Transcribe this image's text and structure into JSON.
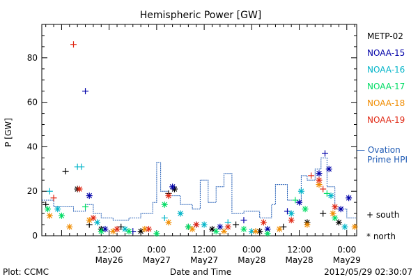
{
  "chart_data": {
    "type": "scatter",
    "title": "Hemispheric Power [GW]",
    "xlabel": "Date and Time",
    "ylabel": "P [GW]",
    "xlim": [
      "2012-05-25T19:00",
      "2012-05-29T02:30"
    ],
    "ylim": [
      0,
      95
    ],
    "yticks": [
      0,
      20,
      40,
      60,
      80
    ],
    "xticks": [
      {
        "time": "2012-05-26T12:00",
        "line1": "12:00",
        "line2": "May26"
      },
      {
        "time": "2012-05-27T00:00",
        "line1": "0:00",
        "line2": "May27"
      },
      {
        "time": "2012-05-27T12:00",
        "line1": "12:00",
        "line2": "May27"
      },
      {
        "time": "2012-05-28T00:00",
        "line1": "0:00",
        "line2": "May28"
      },
      {
        "time": "2012-05-28T12:00",
        "line1": "12:00",
        "line2": "May28"
      },
      {
        "time": "2012-05-29T00:00",
        "line1": "0:00",
        "line2": "May29"
      }
    ],
    "legend_placement": "right",
    "series": [
      {
        "name": "METP-02",
        "color": "#000000",
        "points": [
          [
            "2012-05-25T20:00",
            14,
            "south"
          ],
          [
            "2012-05-26T01:00",
            29,
            "south"
          ],
          [
            "2012-05-26T04:00",
            21,
            "north"
          ],
          [
            "2012-05-26T07:00",
            5,
            "south"
          ],
          [
            "2012-05-26T10:00",
            3,
            "north"
          ],
          [
            "2012-05-26T15:00",
            4,
            "south"
          ],
          [
            "2012-05-26T20:00",
            2,
            "north"
          ],
          [
            "2012-05-27T03:00",
            19,
            "south"
          ],
          [
            "2012-05-27T04:30",
            21,
            "north"
          ],
          [
            "2012-05-27T08:00",
            4,
            "south"
          ],
          [
            "2012-05-27T14:00",
            3,
            "north"
          ],
          [
            "2012-05-27T20:00",
            5,
            "south"
          ],
          [
            "2012-05-28T02:00",
            2,
            "north"
          ],
          [
            "2012-05-28T08:00",
            4,
            "south"
          ],
          [
            "2012-05-28T14:00",
            6,
            "north"
          ],
          [
            "2012-05-28T18:00",
            10,
            "south"
          ],
          [
            "2012-05-28T22:00",
            6,
            "north"
          ]
        ]
      },
      {
        "name": "NOAA-15",
        "color": "#0000a8",
        "points": [
          [
            "2012-05-26T06:00",
            65,
            "south"
          ],
          [
            "2012-05-26T07:00",
            18,
            "north"
          ],
          [
            "2012-05-26T11:00",
            3,
            "north"
          ],
          [
            "2012-05-26T18:00",
            2,
            "south"
          ],
          [
            "2012-05-27T04:00",
            22,
            "north"
          ],
          [
            "2012-05-27T10:00",
            5,
            "south"
          ],
          [
            "2012-05-27T16:00",
            4,
            "north"
          ],
          [
            "2012-05-27T22:00",
            7,
            "south"
          ],
          [
            "2012-05-28T04:00",
            3,
            "north"
          ],
          [
            "2012-05-28T09:00",
            11,
            "south"
          ],
          [
            "2012-05-28T12:00",
            15,
            "north"
          ],
          [
            "2012-05-28T17:00",
            28,
            "north"
          ],
          [
            "2012-05-28T18:30",
            37,
            "south"
          ],
          [
            "2012-05-28T19:30",
            30,
            "north"
          ],
          [
            "2012-05-28T22:30",
            12,
            "north"
          ],
          [
            "2012-05-29T00:30",
            17,
            "north"
          ]
        ]
      },
      {
        "name": "NOAA-16",
        "color": "#00b4c8",
        "points": [
          [
            "2012-05-25T21:00",
            20,
            "south"
          ],
          [
            "2012-05-25T23:00",
            12,
            "north"
          ],
          [
            "2012-05-26T04:00",
            31,
            "south"
          ],
          [
            "2012-05-26T05:00",
            31,
            "south"
          ],
          [
            "2012-05-26T09:00",
            6,
            "north"
          ],
          [
            "2012-05-26T16:00",
            3,
            "north"
          ],
          [
            "2012-05-27T02:00",
            8,
            "south"
          ],
          [
            "2012-05-27T06:00",
            10,
            "north"
          ],
          [
            "2012-05-27T12:00",
            5,
            "north"
          ],
          [
            "2012-05-27T18:00",
            6,
            "south"
          ],
          [
            "2012-05-28T00:00",
            2,
            "north"
          ],
          [
            "2012-05-28T10:00",
            10,
            "north"
          ],
          [
            "2012-05-28T12:30",
            20,
            "north"
          ],
          [
            "2012-05-28T20:00",
            18,
            "north"
          ],
          [
            "2012-05-28T23:30",
            4,
            "north"
          ]
        ]
      },
      {
        "name": "NOAA-17",
        "color": "#00dc64",
        "points": [
          [
            "2012-05-25T20:30",
            12,
            "north"
          ],
          [
            "2012-05-26T00:00",
            9,
            "north"
          ],
          [
            "2012-05-26T06:00",
            13,
            "south"
          ],
          [
            "2012-05-26T10:00",
            2,
            "north"
          ],
          [
            "2012-05-26T17:00",
            2,
            "north"
          ],
          [
            "2012-05-27T00:00",
            1,
            "north"
          ],
          [
            "2012-05-27T02:00",
            14,
            "north"
          ],
          [
            "2012-05-27T08:00",
            4,
            "north"
          ],
          [
            "2012-05-27T15:00",
            2,
            "north"
          ],
          [
            "2012-05-27T22:00",
            3,
            "north"
          ],
          [
            "2012-05-28T04:00",
            1,
            "north"
          ],
          [
            "2012-05-28T11:00",
            16,
            "south"
          ],
          [
            "2012-05-28T13:30",
            12,
            "north"
          ],
          [
            "2012-05-28T19:00",
            19,
            "south"
          ],
          [
            "2012-05-28T21:00",
            8,
            "north"
          ]
        ]
      },
      {
        "name": "NOAA-18",
        "color": "#f08c00",
        "points": [
          [
            "2012-05-25T21:00",
            9,
            "north"
          ],
          [
            "2012-05-26T02:00",
            4,
            "north"
          ],
          [
            "2012-05-26T07:00",
            7,
            "north"
          ],
          [
            "2012-05-26T13:00",
            2,
            "north"
          ],
          [
            "2012-05-26T21:00",
            3,
            "north"
          ],
          [
            "2012-05-27T03:00",
            6,
            "north"
          ],
          [
            "2012-05-27T09:00",
            3,
            "north"
          ],
          [
            "2012-05-27T17:00",
            2,
            "north"
          ],
          [
            "2012-05-28T01:00",
            2,
            "north"
          ],
          [
            "2012-05-28T07:00",
            3,
            "north"
          ],
          [
            "2012-05-28T14:00",
            5,
            "north"
          ],
          [
            "2012-05-28T17:00",
            23,
            "north"
          ],
          [
            "2012-05-28T20:30",
            10,
            "north"
          ],
          [
            "2012-05-29T02:00",
            4,
            "north"
          ]
        ]
      },
      {
        "name": "NOAA-19",
        "color": "#e02814",
        "points": [
          [
            "2012-05-25T22:00",
            17,
            "south"
          ],
          [
            "2012-05-26T03:00",
            86,
            "south"
          ],
          [
            "2012-05-26T04:30",
            21,
            "north"
          ],
          [
            "2012-05-26T08:00",
            8,
            "north"
          ],
          [
            "2012-05-26T14:00",
            3,
            "north"
          ],
          [
            "2012-05-26T22:00",
            3,
            "north"
          ],
          [
            "2012-05-27T03:00",
            18,
            "north"
          ],
          [
            "2012-05-27T10:00",
            5,
            "north"
          ],
          [
            "2012-05-27T18:00",
            4,
            "north"
          ],
          [
            "2012-05-28T03:00",
            6,
            "north"
          ],
          [
            "2012-05-28T10:00",
            7,
            "north"
          ],
          [
            "2012-05-28T15:00",
            27,
            "south"
          ],
          [
            "2012-05-28T17:00",
            25,
            "north"
          ],
          [
            "2012-05-28T18:00",
            21,
            "south"
          ],
          [
            "2012-05-28T21:00",
            13,
            "north"
          ]
        ]
      },
      {
        "name": "Ovation Prime HPI",
        "name_line1": "— Ovation",
        "name_line2": "Prime HPI",
        "color": "#1e5ab4",
        "points": [
          [
            "2012-05-25T19:00",
            16
          ],
          [
            "2012-05-25T22:00",
            13
          ],
          [
            "2012-05-26T03:00",
            11
          ],
          [
            "2012-05-26T06:00",
            14
          ],
          [
            "2012-05-26T08:00",
            10
          ],
          [
            "2012-05-26T10:00",
            8
          ],
          [
            "2012-05-26T13:00",
            7
          ],
          [
            "2012-05-26T17:00",
            8
          ],
          [
            "2012-05-26T20:00",
            10
          ],
          [
            "2012-05-26T23:00",
            15
          ],
          [
            "2012-05-27T00:00",
            33
          ],
          [
            "2012-05-27T01:00",
            20
          ],
          [
            "2012-05-27T03:00",
            18
          ],
          [
            "2012-05-27T06:00",
            14
          ],
          [
            "2012-05-27T09:00",
            12
          ],
          [
            "2012-05-27T11:00",
            25
          ],
          [
            "2012-05-27T13:00",
            15
          ],
          [
            "2012-05-27T15:00",
            22
          ],
          [
            "2012-05-27T17:00",
            28
          ],
          [
            "2012-05-27T19:00",
            10
          ],
          [
            "2012-05-27T22:00",
            11
          ],
          [
            "2012-05-28T02:00",
            8
          ],
          [
            "2012-05-28T05:00",
            14
          ],
          [
            "2012-05-28T06:00",
            23
          ],
          [
            "2012-05-28T09:00",
            16
          ],
          [
            "2012-05-28T11:00",
            15
          ],
          [
            "2012-05-28T12:30",
            27
          ],
          [
            "2012-05-28T14:00",
            25
          ],
          [
            "2012-05-28T16:00",
            30
          ],
          [
            "2012-05-28T17:30",
            35
          ],
          [
            "2012-05-28T19:00",
            22
          ],
          [
            "2012-05-28T21:00",
            12
          ],
          [
            "2012-05-29T00:00",
            8
          ],
          [
            "2012-05-29T02:30",
            8
          ]
        ]
      }
    ],
    "marker_legend": {
      "south_symbol": "+",
      "south_label": "south",
      "north_symbol": "*",
      "north_label": "north"
    }
  },
  "footer": {
    "left": "Plot: CCMC",
    "center": "Date and Time",
    "right": "2012/05/29 02:30:07"
  }
}
